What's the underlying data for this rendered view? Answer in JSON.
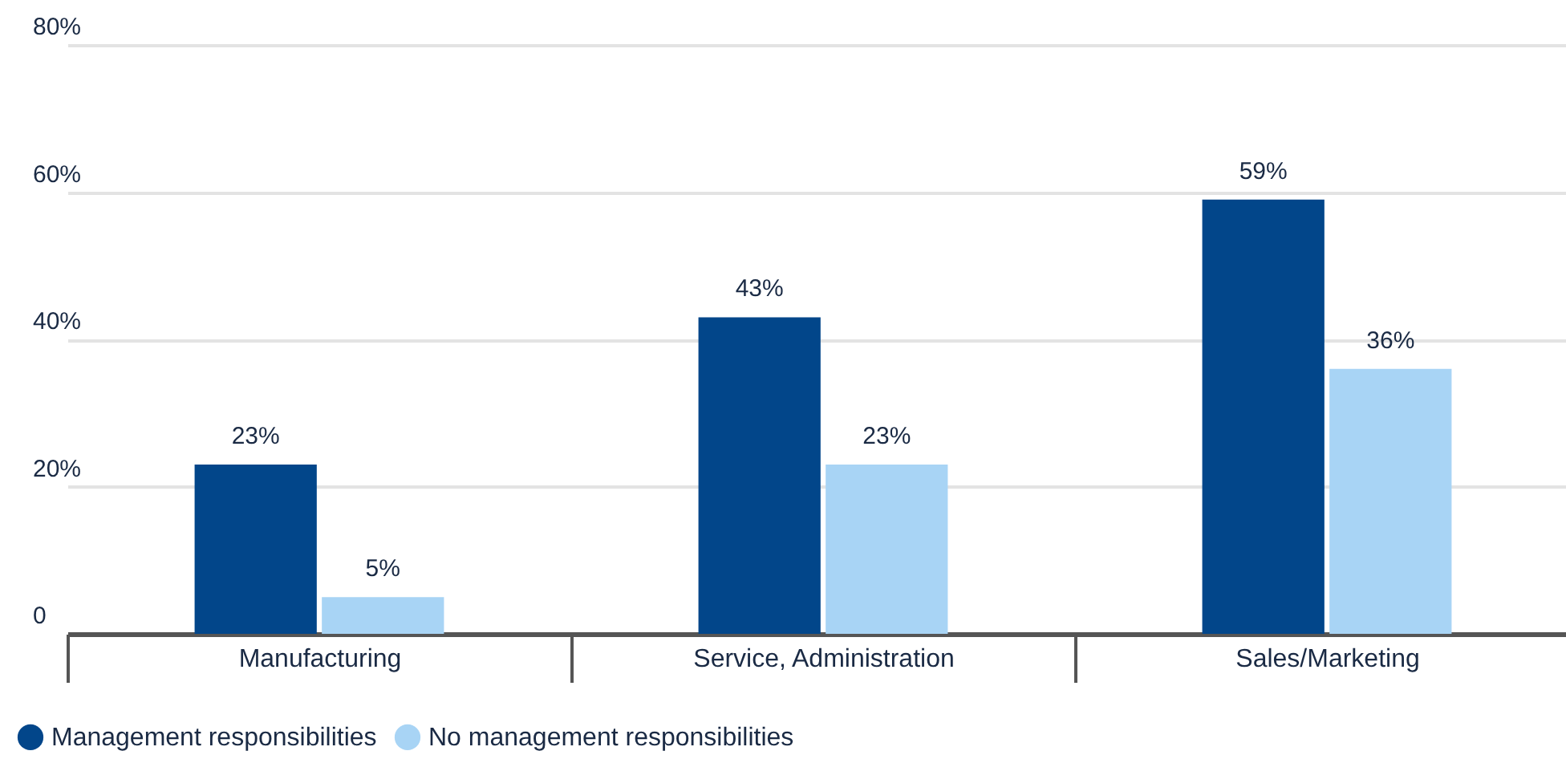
{
  "chart_data": {
    "type": "bar",
    "categories": [
      "Manufacturing",
      "Service, Administration",
      "Sales/Marketing"
    ],
    "series": [
      {
        "name": "Management responsibilities",
        "color": "#02468a",
        "values": [
          23,
          43,
          59
        ],
        "value_labels": [
          "23%",
          "43%",
          "59%"
        ]
      },
      {
        "name": "No management responsibilities",
        "color": "#a8d4f5",
        "values": [
          5,
          23,
          36
        ],
        "value_labels": [
          "5%",
          "23%",
          "36%"
        ]
      }
    ],
    "ylim": [
      0,
      80
    ],
    "yticks": [
      0,
      {
        "value": 20,
        "label": "20%"
      },
      {
        "value": 40,
        "label": "40%"
      },
      {
        "value": 60,
        "label": "60%"
      },
      {
        "value": 80,
        "label": "80%"
      }
    ],
    "grid": "y",
    "legend": "bottom"
  }
}
